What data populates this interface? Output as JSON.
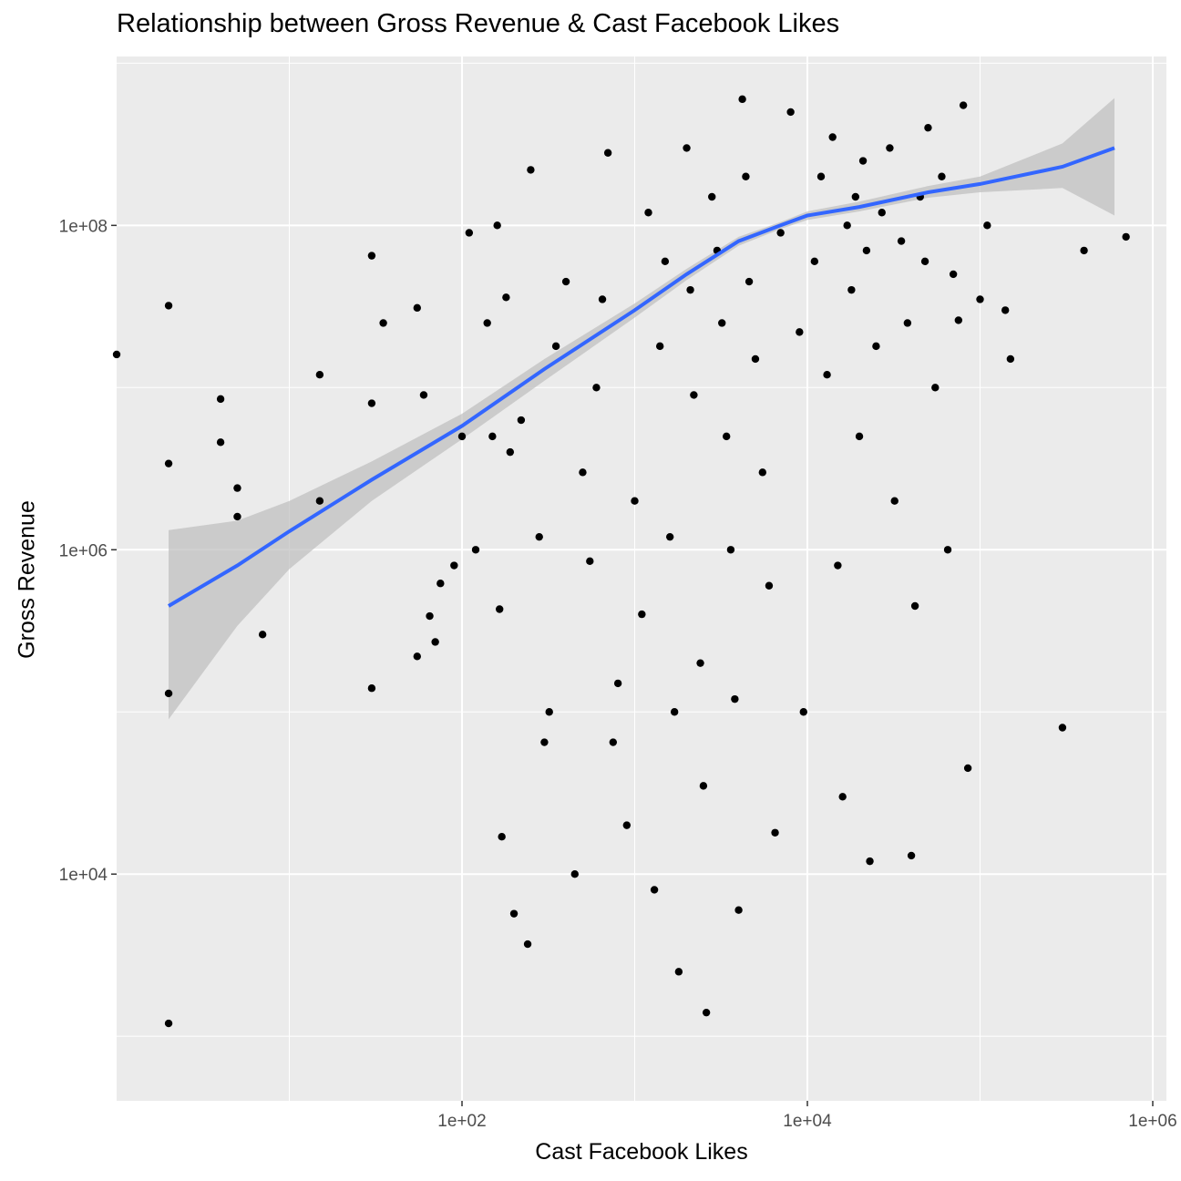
{
  "chart_data": {
    "type": "scatter",
    "title": "Relationship between Gross Revenue & Cast Facebook Likes",
    "xlabel": "Cast Facebook Likes",
    "ylabel": "Gross Revenue",
    "x_scale": "log10",
    "y_scale": "log10",
    "xlim": [
      1,
      1200000
    ],
    "ylim": [
      400,
      1100000000
    ],
    "x_ticks": [
      {
        "value": 100,
        "label": "1e+02"
      },
      {
        "value": 10000,
        "label": "1e+04"
      },
      {
        "value": 1000000,
        "label": "1e+06"
      }
    ],
    "y_ticks": [
      {
        "value": 10000,
        "label": "1e+04"
      },
      {
        "value": 1000000,
        "label": "1e+06"
      },
      {
        "value": 100000000,
        "label": "1e+08"
      }
    ],
    "grid": true,
    "colors": {
      "panel": "#ebebeb",
      "grid": "#ffffff",
      "points": "#000000",
      "smooth_line": "#3366ff",
      "ribbon": "#bdbdbd"
    },
    "smooth": {
      "x": [
        2,
        5,
        10,
        30,
        100,
        300,
        1000,
        2000,
        4000,
        7000,
        10000,
        20000,
        50000,
        100000,
        300000,
        600000
      ],
      "y": [
        450000,
        800000,
        1300000,
        2700000,
        5800000,
        13000000,
        30000000,
        50000000,
        80000000,
        100000000,
        115000000,
        130000000,
        160000000,
        180000000,
        230000000,
        300000000
      ],
      "lower": [
        90000,
        340000,
        760000,
        2000000,
        4800000,
        11000000,
        27000000,
        46000000,
        75000000,
        95000000,
        108000000,
        122000000,
        148000000,
        160000000,
        170000000,
        115000000
      ],
      "upper": [
        1320000,
        1510000,
        2000000,
        3500000,
        6900000,
        15000000,
        33000000,
        54000000,
        85000000,
        105000000,
        122000000,
        140000000,
        175000000,
        200000000,
        320000000,
        610000000
      ]
    },
    "points": [
      {
        "x": 1,
        "y": 16000000.0
      },
      {
        "x": 2,
        "y": 32000000.0
      },
      {
        "x": 2,
        "y": 3400000.0
      },
      {
        "x": 2,
        "y": 130000.0
      },
      {
        "x": 2,
        "y": 1200.0
      },
      {
        "x": 4,
        "y": 8500000.0
      },
      {
        "x": 4,
        "y": 4600000.0
      },
      {
        "x": 5,
        "y": 2400000.0
      },
      {
        "x": 5,
        "y": 1600000.0
      },
      {
        "x": 7,
        "y": 300000.0
      },
      {
        "x": 15,
        "y": 2000000.0
      },
      {
        "x": 15,
        "y": 12000000.0
      },
      {
        "x": 30,
        "y": 65000000.0
      },
      {
        "x": 30,
        "y": 8000000.0
      },
      {
        "x": 30,
        "y": 140000.0
      },
      {
        "x": 35,
        "y": 25000000.0
      },
      {
        "x": 55,
        "y": 31000000.0
      },
      {
        "x": 55,
        "y": 220000.0
      },
      {
        "x": 60,
        "y": 9000000.0
      },
      {
        "x": 65,
        "y": 390000.0
      },
      {
        "x": 70,
        "y": 270000.0
      },
      {
        "x": 75,
        "y": 620000.0
      },
      {
        "x": 90,
        "y": 800000.0
      },
      {
        "x": 100,
        "y": 5000000.0
      },
      {
        "x": 110,
        "y": 90000000.0
      },
      {
        "x": 120,
        "y": 1000000.0
      },
      {
        "x": 140,
        "y": 25000000.0
      },
      {
        "x": 150,
        "y": 5000000.0
      },
      {
        "x": 160,
        "y": 100000000.0
      },
      {
        "x": 165,
        "y": 430000.0
      },
      {
        "x": 170,
        "y": 17000.0
      },
      {
        "x": 180,
        "y": 36000000.0
      },
      {
        "x": 190,
        "y": 4000000.0
      },
      {
        "x": 200,
        "y": 5700.0
      },
      {
        "x": 220,
        "y": 6300000.0
      },
      {
        "x": 240,
        "y": 3700.0
      },
      {
        "x": 250,
        "y": 220000000.0
      },
      {
        "x": 280,
        "y": 1200000.0
      },
      {
        "x": 300,
        "y": 65000.0
      },
      {
        "x": 320,
        "y": 100000.0
      },
      {
        "x": 350,
        "y": 18000000.0
      },
      {
        "x": 400,
        "y": 45000000.0
      },
      {
        "x": 450,
        "y": 10000.0
      },
      {
        "x": 500,
        "y": 3000000.0
      },
      {
        "x": 550,
        "y": 850000.0
      },
      {
        "x": 600,
        "y": 10000000.0
      },
      {
        "x": 650,
        "y": 35000000.0
      },
      {
        "x": 700,
        "y": 280000000.0
      },
      {
        "x": 750,
        "y": 65000.0
      },
      {
        "x": 800,
        "y": 150000.0
      },
      {
        "x": 900,
        "y": 20000.0
      },
      {
        "x": 1000,
        "y": 2000000.0
      },
      {
        "x": 1100,
        "y": 400000.0
      },
      {
        "x": 1200,
        "y": 120000000.0
      },
      {
        "x": 1300,
        "y": 8000.0
      },
      {
        "x": 1400,
        "y": 18000000.0
      },
      {
        "x": 1500,
        "y": 60000000.0
      },
      {
        "x": 1600,
        "y": 1200000.0
      },
      {
        "x": 1700,
        "y": 100000.0
      },
      {
        "x": 1800,
        "y": 2500.0
      },
      {
        "x": 2000,
        "y": 300000000.0
      },
      {
        "x": 2100,
        "y": 40000000.0
      },
      {
        "x": 2200,
        "y": 9000000.0
      },
      {
        "x": 2400,
        "y": 200000.0
      },
      {
        "x": 2500,
        "y": 35000.0
      },
      {
        "x": 2600,
        "y": 1400.0
      },
      {
        "x": 2800,
        "y": 150000000.0
      },
      {
        "x": 3000,
        "y": 70000000.0
      },
      {
        "x": 3200,
        "y": 25000000.0
      },
      {
        "x": 3400,
        "y": 5000000.0
      },
      {
        "x": 3600,
        "y": 1000000.0
      },
      {
        "x": 3800,
        "y": 120000.0
      },
      {
        "x": 4000,
        "y": 6000.0
      },
      {
        "x": 4200,
        "y": 600000000.0
      },
      {
        "x": 4400,
        "y": 200000000.0
      },
      {
        "x": 4600,
        "y": 45000000.0
      },
      {
        "x": 5000,
        "y": 15000000.0
      },
      {
        "x": 5500,
        "y": 3000000.0
      },
      {
        "x": 6000,
        "y": 600000.0
      },
      {
        "x": 6500,
        "y": 18000.0
      },
      {
        "x": 7000,
        "y": 90000000.0
      },
      {
        "x": 8000,
        "y": 500000000.0
      },
      {
        "x": 9000,
        "y": 22000000.0
      },
      {
        "x": 9500,
        "y": 100000.0
      },
      {
        "x": 11000,
        "y": 60000000.0
      },
      {
        "x": 12000,
        "y": 200000000.0
      },
      {
        "x": 13000,
        "y": 12000000.0
      },
      {
        "x": 14000,
        "y": 350000000.0
      },
      {
        "x": 15000,
        "y": 800000.0
      },
      {
        "x": 16000,
        "y": 30000.0
      },
      {
        "x": 17000,
        "y": 100000000.0
      },
      {
        "x": 18000,
        "y": 40000000.0
      },
      {
        "x": 19000,
        "y": 150000000.0
      },
      {
        "x": 20000,
        "y": 5000000.0
      },
      {
        "x": 21000,
        "y": 250000000.0
      },
      {
        "x": 22000,
        "y": 70000000.0
      },
      {
        "x": 23000,
        "y": 12000.0
      },
      {
        "x": 25000,
        "y": 18000000.0
      },
      {
        "x": 27000,
        "y": 120000000.0
      },
      {
        "x": 30000,
        "y": 300000000.0
      },
      {
        "x": 32000,
        "y": 2000000.0
      },
      {
        "x": 35000,
        "y": 80000000.0
      },
      {
        "x": 38000,
        "y": 25000000.0
      },
      {
        "x": 40000,
        "y": 13000.0
      },
      {
        "x": 42000,
        "y": 450000.0
      },
      {
        "x": 45000,
        "y": 150000000.0
      },
      {
        "x": 48000,
        "y": 60000000.0
      },
      {
        "x": 50000,
        "y": 400000000.0
      },
      {
        "x": 55000,
        "y": 10000000.0
      },
      {
        "x": 60000,
        "y": 200000000.0
      },
      {
        "x": 65000,
        "y": 1000000.0
      },
      {
        "x": 70000,
        "y": 50000000.0
      },
      {
        "x": 75000,
        "y": 26000000.0
      },
      {
        "x": 80000,
        "y": 550000000.0
      },
      {
        "x": 85000,
        "y": 45000.0
      },
      {
        "x": 100000,
        "y": 35000000.0
      },
      {
        "x": 110000,
        "y": 100000000.0
      },
      {
        "x": 140000,
        "y": 30000000.0
      },
      {
        "x": 150000,
        "y": 15000000.0
      },
      {
        "x": 300000,
        "y": 80000.0
      },
      {
        "x": 400000,
        "y": 70000000.0
      },
      {
        "x": 700000,
        "y": 85000000.0
      }
    ]
  }
}
